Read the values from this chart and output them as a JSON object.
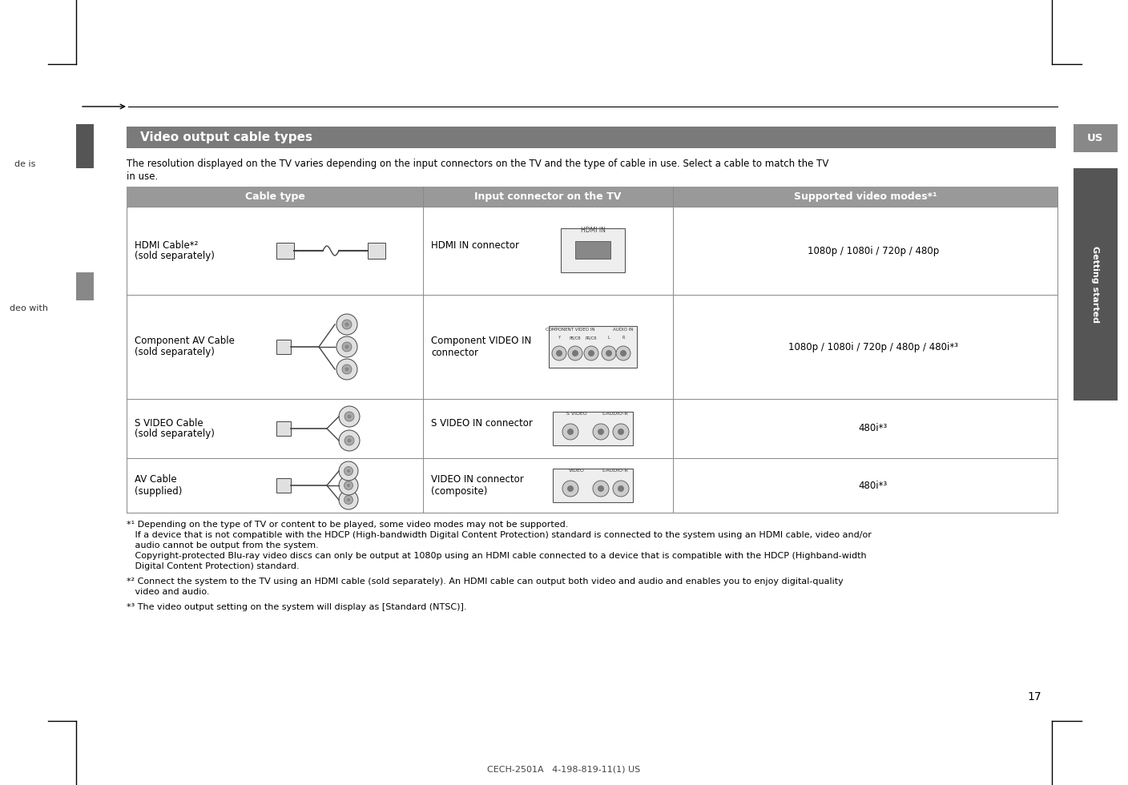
{
  "bg_color": "#ffffff",
  "header_bar_color": "#7a7a7a",
  "header_text_color": "#ffffff",
  "header_text": "Video output cable types",
  "table_header_bg": "#999999",
  "intro_text_line1": "The resolution displayed on the TV varies depending on the input connectors on the TV and the type of cable in use. Select a cable to match the TV",
  "intro_text_line2": "in use.",
  "col_headers": [
    "Cable type",
    "Input connector on the TV",
    "Supported video modes*¹"
  ],
  "rows": [
    {
      "cable_line1": "HDMI Cable*²",
      "cable_line2": "(sold separately)",
      "connector_line1": "HDMI IN connector",
      "connector_line2": "",
      "modes": "1080p / 1080i / 720p / 480p"
    },
    {
      "cable_line1": "Component AV Cable",
      "cable_line2": "(sold separately)",
      "connector_line1": "Component VIDEO IN",
      "connector_line2": "connector",
      "modes": "1080p / 1080i / 720p / 480p / 480i*³"
    },
    {
      "cable_line1": "S VIDEO Cable",
      "cable_line2": "(sold separately)",
      "connector_line1": "S VIDEO IN connector",
      "connector_line2": "",
      "modes": "480i*³"
    },
    {
      "cable_line1": "AV Cable",
      "cable_line2": "(supplied)",
      "connector_line1": "VIDEO IN connector",
      "connector_line2": "(composite)",
      "modes": "480i*³"
    }
  ],
  "footnote1a": "*¹ Depending on the type of TV or content to be played, some video modes may not be supported.",
  "footnote1b": "   If a device that is not compatible with the HDCP (High-bandwidth Digital Content Protection) standard is connected to the system using an HDMI cable, video and/or",
  "footnote1c": "   audio cannot be output from the system.",
  "footnote1d": "   Copyright-protected Blu-ray video discs can only be output at 1080p using an HDMI cable connected to a device that is compatible with the HDCP (Highband-width",
  "footnote1e": "   Digital Content Protection) standard.",
  "footnote2a": "*² Connect the system to the TV using an HDMI cable (sold separately). An HDMI cable can output both video and audio and enables you to enjoy digital-quality",
  "footnote2b": "   video and audio.",
  "footnote3": "*³ The video output setting on the system will display as [Standard (NTSC)].",
  "side_tab_color": "#555555",
  "side_text": "Getting started",
  "us_tab_bg": "#888888",
  "left_tab1_color": "#555555",
  "left_tab2_color": "#888888",
  "page_number": "17",
  "doc_code": "CECH-2501A   4-198-819-11(1) US",
  "left_margin_text1": "de is",
  "left_margin_text2": "deo with"
}
